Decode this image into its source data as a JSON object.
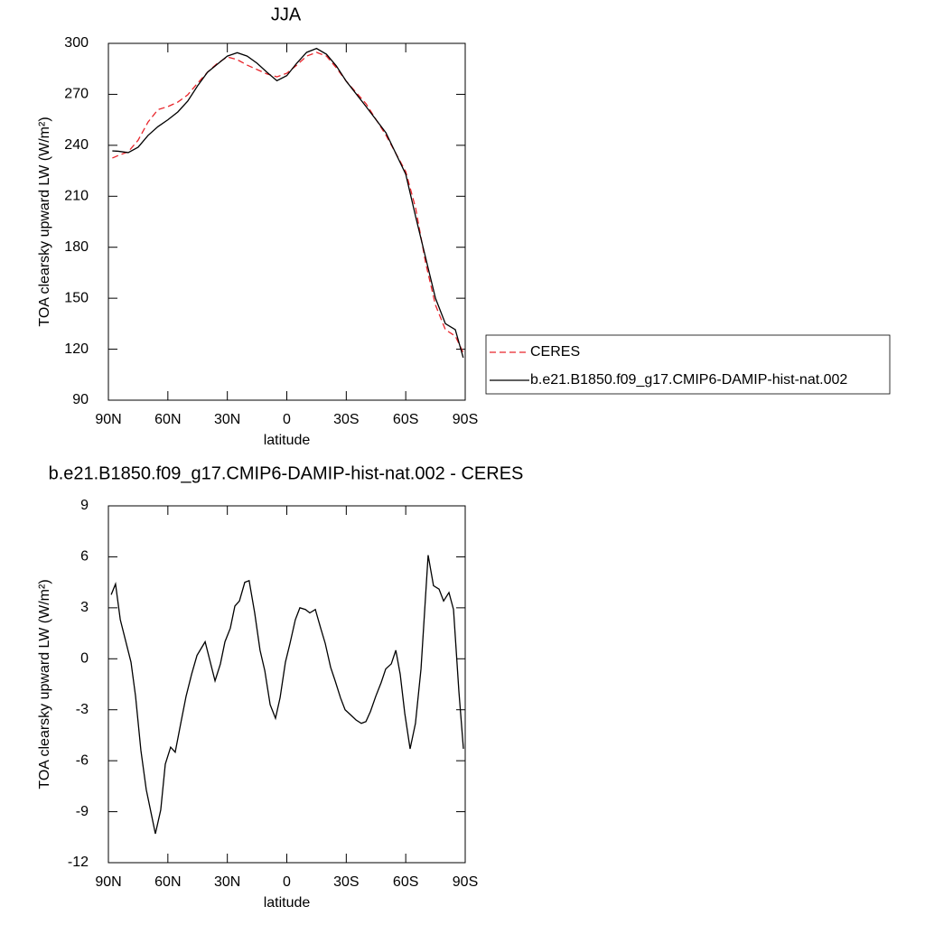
{
  "chart_data": [
    {
      "type": "line",
      "title": "JJA",
      "x_label": "latitude",
      "y_label": "TOA clearsky upward LW (W/m²)",
      "xlim": [
        90,
        -90
      ],
      "xticks": [
        {
          "value": 90,
          "label": "90N"
        },
        {
          "value": 60,
          "label": "60N"
        },
        {
          "value": 30,
          "label": "30N"
        },
        0,
        {
          "value": -30,
          "label": "30S"
        },
        {
          "value": -60,
          "label": "60S"
        },
        {
          "value": -90,
          "label": "90S"
        }
      ],
      "ylim": [
        90,
        300
      ],
      "yticks": [
        90,
        120,
        150,
        180,
        210,
        240,
        270,
        300
      ],
      "legend": "right",
      "x": [
        88,
        85,
        80,
        75,
        70,
        65,
        60,
        55,
        50,
        45,
        40,
        35,
        30,
        25,
        20,
        15,
        10,
        5,
        0,
        -5,
        -10,
        -15,
        -20,
        -25,
        -30,
        -40,
        -50,
        -60,
        -65,
        -70,
        -75,
        -80,
        -85,
        -89
      ],
      "series": [
        {
          "name": "CERES",
          "color": "#e8242a",
          "line_style": "dashed",
          "values": [
            232.5,
            234,
            236.2,
            243,
            253.7,
            261,
            262.8,
            265.4,
            269.7,
            276.6,
            283,
            288.3,
            292,
            290.4,
            287.2,
            284.6,
            282,
            280.3,
            282.4,
            287.2,
            292.5,
            294.7,
            292.5,
            285.6,
            277.7,
            264.4,
            246,
            224.5,
            203,
            171,
            146,
            131.5,
            127.7,
            118
          ]
        },
        {
          "name": "b.e21.B1850.f09_g17.CMIP6-DAMIP-hist-nat.002",
          "color": "#000000",
          "line_style": "solid",
          "values": [
            236.7,
            236.5,
            235.7,
            238.9,
            245.8,
            251,
            255,
            259.6,
            266,
            275,
            283,
            287.8,
            292.5,
            294.5,
            292.5,
            288.3,
            283,
            278,
            281,
            288.3,
            294.7,
            297,
            293.6,
            286.7,
            277.7,
            262.8,
            247.4,
            223,
            198,
            174,
            150,
            135,
            131.5,
            115
          ]
        }
      ]
    },
    {
      "type": "line",
      "title": "b.e21.B1850.f09_g17.CMIP6-DAMIP-hist-nat.002 - CERES",
      "x_label": "latitude",
      "y_label": "TOA clearsky upward LW (W/m²)",
      "xlim": [
        90,
        -90
      ],
      "xticks": [
        {
          "value": 90,
          "label": "90N"
        },
        {
          "value": 60,
          "label": "60N"
        },
        {
          "value": 30,
          "label": "30N"
        },
        0,
        {
          "value": -30,
          "label": "30S"
        },
        {
          "value": -60,
          "label": "60S"
        },
        {
          "value": -90,
          "label": "90S"
        }
      ],
      "ylim": [
        -12,
        9
      ],
      "yticks": [
        -12,
        -9,
        -6,
        -3,
        0,
        3,
        6,
        9
      ],
      "x": [
        88.6,
        86.4,
        84,
        78.6,
        76.3,
        73.6,
        70.9,
        66.3,
        63.6,
        61.3,
        58.6,
        56.3,
        53.5,
        50.8,
        48,
        45.3,
        41.2,
        36.2,
        33.5,
        31.2,
        28.5,
        26.2,
        23.9,
        21.2,
        19,
        16.2,
        13.5,
        11.1,
        8.4,
        5.7,
        3.4,
        0.7,
        -1.6,
        -4.3,
        -6.6,
        -9.4,
        -11.6,
        -14.4,
        -17.1,
        -19.4,
        -22.1,
        -24.4,
        -27.1,
        -29.4,
        -32.2,
        -34.9,
        -37.6,
        -39.9,
        -42.2,
        -44.9,
        -47.6,
        -49.9,
        -52.7,
        -55,
        -57.2,
        -59.5,
        -62.2,
        -64.9,
        -67.7,
        -71.3,
        -74,
        -76.8,
        -79.1,
        -81.8,
        -84.1,
        -86.8,
        -89.1
      ],
      "series": [
        {
          "color": "#000000",
          "line_style": "solid",
          "values": [
            3.77,
            4.4,
            2.3,
            -0.2,
            -2.2,
            -5.4,
            -7.7,
            -10.3,
            -8.9,
            -6.2,
            -5.2,
            -5.5,
            -3.8,
            -2.2,
            -0.9,
            0.2,
            1,
            -1.3,
            -0.3,
            1,
            1.8,
            3.1,
            3.4,
            4.5,
            4.6,
            2.7,
            0.5,
            -0.7,
            -2.7,
            -3.5,
            -2.3,
            -0.2,
            0.9,
            2.3,
            3,
            2.9,
            2.7,
            2.9,
            1.8,
            0.9,
            -0.5,
            -1.3,
            -2.3,
            -3,
            -3.3,
            -3.6,
            -3.8,
            -3.7,
            -3.1,
            -2.2,
            -1.4,
            -0.6,
            -0.3,
            0.5,
            -0.9,
            -3.2,
            -5.3,
            -3.8,
            -0.6,
            6.1,
            4.3,
            4.1,
            3.4,
            3.9,
            2.9,
            -1.9,
            -5.3
          ]
        }
      ]
    }
  ]
}
